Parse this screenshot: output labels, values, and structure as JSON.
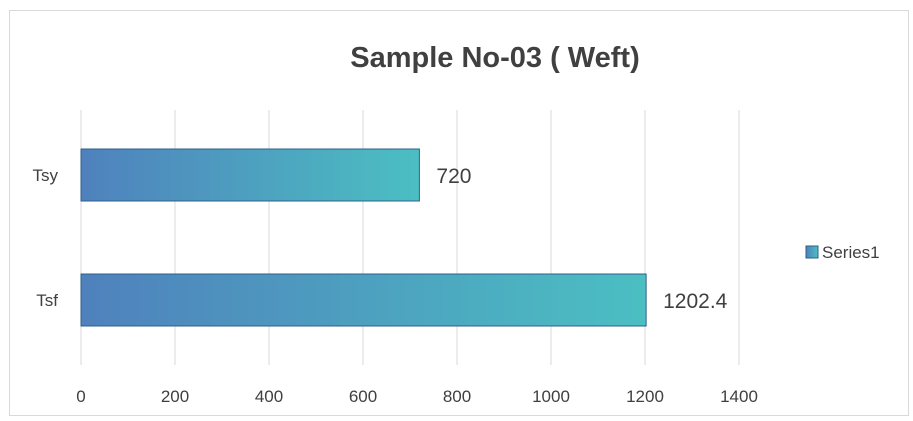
{
  "chart_data": {
    "type": "bar",
    "orientation": "horizontal",
    "title": "Sample No-03 ( Weft)",
    "categories": [
      "Tsy",
      "Tsf"
    ],
    "series": [
      {
        "name": "Series1",
        "values": [
          720,
          1202.4
        ],
        "labels": [
          "720",
          "1202.4"
        ]
      }
    ],
    "xlim": [
      0,
      1400
    ],
    "x_ticks": [
      0,
      200,
      400,
      600,
      800,
      1000,
      1200,
      1400
    ],
    "x_tick_labels": [
      "0",
      "200",
      "400",
      "600",
      "800",
      "1000",
      "1200",
      "1400"
    ],
    "grid": true,
    "legend_position": "right",
    "colors": {
      "bar_gradient_start": "#4f81bd",
      "bar_gradient_end": "#4bbfc2",
      "bar_border": "#2f5f8a",
      "grid": "#d9d9d9",
      "text": "#404040"
    }
  }
}
